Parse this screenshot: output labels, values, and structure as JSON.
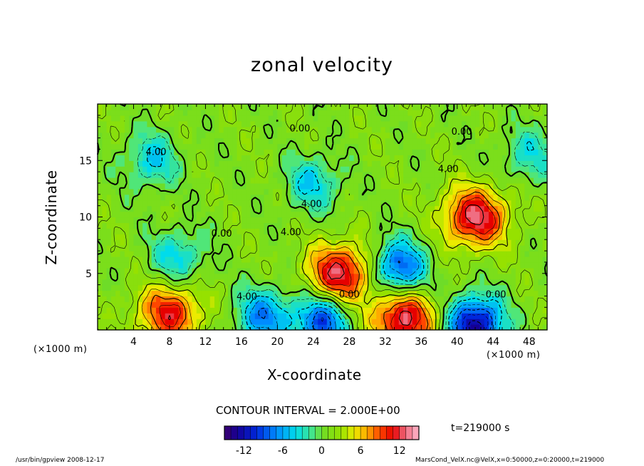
{
  "title": "zonal velocity",
  "xlabel": "X-coordinate",
  "ylabel": "Z-coordinate",
  "x_unit": "(×1000 m)",
  "y_unit": "(×1000 m)",
  "contour_interval": "CONTOUR INTERVAL = 2.000E+00",
  "time_label": "t=219000 s",
  "footer_left": "/usr/bin/gpview  2008-12-17",
  "footer_right": "MarsCond_VelX.nc@VelX,x=0:50000,z=0:20000,t=219000",
  "colorbar": {
    "min": -15,
    "max": 15,
    "step": 1,
    "ticks": [
      "-12",
      "-6",
      "0",
      "6",
      "12"
    ],
    "tick_values": [
      -12,
      -6,
      0,
      6,
      12
    ]
  },
  "chart_data": {
    "type": "heatmap",
    "title": "zonal velocity",
    "xlabel": "X-coordinate",
    "ylabel": "Z-coordinate",
    "xlim": [
      0,
      50
    ],
    "ylim": [
      0,
      20
    ],
    "x_ticks": [
      "4",
      "8",
      "12",
      "16",
      "20",
      "24",
      "28",
      "32",
      "36",
      "40",
      "44",
      "48"
    ],
    "x_tick_values": [
      4,
      8,
      12,
      16,
      20,
      24,
      28,
      32,
      36,
      40,
      44,
      48
    ],
    "y_ticks": [
      "5",
      "10",
      "15"
    ],
    "y_tick_values": [
      5,
      10,
      15
    ],
    "contour_labels": [
      {
        "text": "4.00",
        "x": 6.5,
        "y": 15.7
      },
      {
        "text": "0.00",
        "x": 22.5,
        "y": 17.8
      },
      {
        "text": "0.00",
        "x": 40.5,
        "y": 17.5
      },
      {
        "text": "4.00",
        "x": 23.8,
        "y": 11.1
      },
      {
        "text": "0.00",
        "x": 13.8,
        "y": 8.5
      },
      {
        "text": "4.00",
        "x": 21.5,
        "y": 8.6
      },
      {
        "text": "4.00",
        "x": 16.6,
        "y": 2.9
      },
      {
        "text": "0.00",
        "x": 28.0,
        "y": 3.1
      },
      {
        "text": "0.00",
        "x": 44.3,
        "y": 3.1
      },
      {
        "text": "4.00",
        "x": 39.0,
        "y": 14.2
      }
    ],
    "features": [
      {
        "kind": "max",
        "x": 42,
        "y": 10,
        "value": 12
      },
      {
        "kind": "max",
        "x": 27,
        "y": 5,
        "value": 12
      },
      {
        "kind": "max",
        "x": 34,
        "y": 1,
        "value": 12
      },
      {
        "kind": "max",
        "x": 8,
        "y": 1.5,
        "value": 10
      },
      {
        "kind": "min",
        "x": 33.5,
        "y": 5.5,
        "value": -10
      },
      {
        "kind": "min",
        "x": 42,
        "y": 0.5,
        "value": -14
      },
      {
        "kind": "min",
        "x": 25,
        "y": 0.8,
        "value": -10
      },
      {
        "kind": "min",
        "x": 18.5,
        "y": 1.2,
        "value": -8
      },
      {
        "kind": "min",
        "x": 24,
        "y": 13,
        "value": -5
      },
      {
        "kind": "min",
        "x": 6,
        "y": 15,
        "value": -5
      },
      {
        "kind": "min",
        "x": 9,
        "y": 6.5,
        "value": -5
      },
      {
        "kind": "min",
        "x": 48,
        "y": 15.5,
        "value": -4
      }
    ]
  }
}
